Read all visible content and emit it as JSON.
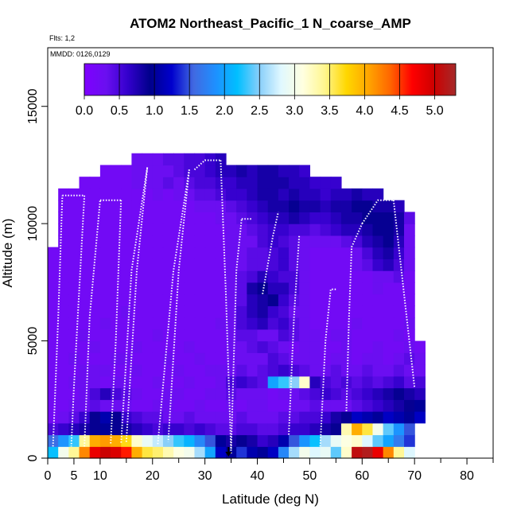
{
  "chart_data": {
    "type": "heatmap",
    "title": "ATOM2 Northeast_Pacific_1 N_coarse_AMP",
    "flights_label": "Flts: 1,2",
    "dates_label": "MMDD: 0126,0129",
    "xlabel": "Latitude (deg N)",
    "ylabel": "Altitude (m)",
    "xlim": [
      0,
      85
    ],
    "ylim": [
      0,
      17500
    ],
    "x_ticks": [
      0,
      5,
      10,
      20,
      30,
      40,
      50,
      60,
      70,
      80
    ],
    "x_minor_ticks": [
      15,
      25,
      35,
      45,
      55,
      65,
      75,
      85
    ],
    "y_ticks": [
      0,
      5000,
      10000,
      15000
    ],
    "colorbar": {
      "min": 0,
      "max": 5.3,
      "ticks": [
        0.0,
        0.5,
        1.0,
        1.5,
        2.0,
        2.5,
        3.0,
        3.5,
        4.0,
        4.5,
        5.0
      ],
      "tick_labels": [
        "0.0",
        "0.5",
        "1.0",
        "1.5",
        "2.0",
        "2.5",
        "3.0",
        "3.5",
        "4.0",
        "4.5",
        "5.0"
      ],
      "stops": [
        "#7f00ff",
        "#6a0ff0",
        "#3300cc",
        "#00008b",
        "#0000cd",
        "#4169e1",
        "#1e90ff",
        "#00bfff",
        "#87cefa",
        "#e0f8ff",
        "#ffffe0",
        "#fff68f",
        "#ffd700",
        "#ffa500",
        "#ff6600",
        "#ff0000",
        "#cd0000",
        "#a52a2a"
      ]
    },
    "latitude_bins": [
      1,
      3,
      5,
      7,
      9,
      11,
      13,
      15,
      17,
      19,
      21,
      23,
      25,
      27,
      29,
      31,
      33,
      35,
      37,
      39,
      41,
      43,
      45,
      47,
      49,
      51,
      53,
      55,
      57,
      59,
      61,
      63,
      65,
      67,
      69,
      71
    ],
    "altitude_bins": [
      250,
      750,
      1250,
      1750,
      2250,
      2750,
      3250,
      3750,
      4250,
      4750,
      5250,
      5750,
      6250,
      6750,
      7250,
      7750,
      8250,
      8750,
      9250,
      9750,
      10250,
      10750,
      11250,
      11750,
      12250,
      12750
    ],
    "series": [
      {
        "name": "0-500 m",
        "values": [
          2.2,
          3.0,
          3.4,
          4.2,
          4.8,
          5.0,
          4.9,
          4.6,
          4.0,
          3.6,
          3.5,
          3.3,
          3.1,
          3.0,
          2.6,
          2.0,
          1.2,
          1.0,
          1.4,
          1.1,
          1.0,
          1.2,
          1.8,
          2.6,
          3.0,
          2.8,
          2.9,
          2.4,
          3.2,
          5.1,
          5.2,
          4.8,
          4.2,
          3.4,
          2.8,
          null
        ]
      },
      {
        "name": "500-1000 m",
        "values": [
          1.6,
          1.9,
          2.3,
          3.4,
          4.0,
          4.1,
          4.0,
          3.7,
          3.2,
          2.9,
          2.7,
          2.5,
          2.3,
          2.1,
          1.8,
          1.5,
          1.0,
          0.8,
          0.9,
          0.8,
          0.6,
          0.7,
          1.1,
          1.5,
          1.9,
          2.2,
          2.6,
          2.9,
          3.1,
          3.2,
          2.8,
          2.4,
          2.0,
          1.7,
          1.4,
          null
        ]
      },
      {
        "name": "1000-1500 m",
        "values": [
          0.5,
          0.6,
          0.7,
          0.8,
          0.9,
          1.0,
          0.9,
          0.8,
          0.7,
          0.6,
          0.5,
          0.6,
          0.6,
          0.5,
          0.6,
          0.5,
          0.4,
          0.4,
          0.5,
          0.5,
          0.4,
          0.4,
          0.5,
          0.6,
          0.6,
          0.7,
          0.8,
          0.9,
          3.3,
          4.0,
          3.6,
          3.0,
          2.4,
          1.9,
          1.5,
          null
        ]
      },
      {
        "name": "1500-2000 m",
        "values": [
          0.2,
          0.3,
          0.4,
          0.6,
          0.9,
          1.1,
          0.9,
          0.6,
          0.5,
          0.4,
          0.4,
          0.3,
          0.3,
          0.4,
          0.3,
          0.3,
          0.3,
          0.3,
          0.4,
          0.3,
          0.3,
          0.3,
          0.4,
          0.4,
          0.5,
          0.5,
          0.6,
          0.8,
          0.9,
          1.2,
          1.1,
          1.0,
          1.2,
          1.1,
          1.0,
          1.2
        ]
      },
      {
        "name": "2000-2500 m",
        "values": [
          0.2,
          0.2,
          0.3,
          0.3,
          0.4,
          0.3,
          0.3,
          0.3,
          0.2,
          0.2,
          0.3,
          0.3,
          0.2,
          0.2,
          0.3,
          0.2,
          0.2,
          0.3,
          0.2,
          0.3,
          0.3,
          0.2,
          0.2,
          0.3,
          0.3,
          0.4,
          0.3,
          0.3,
          0.3,
          0.4,
          0.5,
          0.6,
          0.7,
          0.8,
          0.9,
          1.0
        ]
      },
      {
        "name": "2500-3000 m",
        "values": [
          0.2,
          0.2,
          0.2,
          0.3,
          0.5,
          0.7,
          0.5,
          0.4,
          0.3,
          0.2,
          0.2,
          0.3,
          0.3,
          0.2,
          0.2,
          0.3,
          0.3,
          0.4,
          0.3,
          0.3,
          0.3,
          0.2,
          0.3,
          0.3,
          0.4,
          0.5,
          0.6,
          0.5,
          0.4,
          0.5,
          0.6,
          0.7,
          0.8,
          0.9,
          0.8,
          0.7
        ]
      },
      {
        "name": "3000-3500 m",
        "values": [
          0.2,
          0.2,
          0.3,
          0.3,
          0.3,
          0.2,
          0.3,
          0.3,
          0.2,
          0.2,
          0.3,
          0.2,
          0.2,
          0.3,
          0.2,
          0.2,
          0.3,
          0.5,
          0.6,
          0.5,
          0.4,
          2.0,
          2.3,
          2.5,
          3.2,
          0.7,
          0.5,
          0.4,
          0.5,
          0.4,
          0.5,
          0.4,
          0.5,
          0.6,
          0.4,
          0.5
        ]
      },
      {
        "name": "3500-4000 m",
        "values": [
          0.2,
          0.2,
          0.2,
          0.3,
          0.3,
          0.3,
          0.2,
          0.2,
          0.3,
          0.2,
          0.2,
          0.2,
          0.3,
          0.2,
          0.2,
          0.3,
          0.3,
          0.3,
          0.4,
          0.3,
          0.4,
          0.5,
          0.6,
          0.5,
          0.4,
          0.3,
          0.3,
          0.4,
          0.3,
          0.3,
          0.4,
          0.3,
          0.3,
          0.4,
          0.3,
          0.3
        ]
      },
      {
        "name": "4000-4500 m",
        "values": [
          0.2,
          0.2,
          0.3,
          0.2,
          0.2,
          0.2,
          0.3,
          0.3,
          0.2,
          0.2,
          0.2,
          0.3,
          0.2,
          0.2,
          0.3,
          0.2,
          0.2,
          0.3,
          0.3,
          0.3,
          0.3,
          0.5,
          0.4,
          0.3,
          0.3,
          0.3,
          0.2,
          0.3,
          0.3,
          0.2,
          0.3,
          0.3,
          0.2,
          0.3,
          0.4,
          0.3
        ]
      },
      {
        "name": "4500-5000 m",
        "values": [
          0.2,
          0.2,
          0.2,
          0.2,
          0.3,
          0.2,
          0.2,
          0.2,
          0.3,
          0.2,
          0.2,
          0.2,
          0.2,
          0.3,
          0.2,
          0.2,
          0.2,
          0.3,
          0.3,
          0.4,
          0.5,
          0.4,
          0.3,
          0.2,
          0.3,
          0.3,
          0.2,
          0.2,
          0.3,
          0.2,
          0.2,
          0.3,
          0.2,
          0.2,
          0.3,
          0.2
        ]
      },
      {
        "name": "5000-5500 m",
        "values": [
          0.2,
          0.2,
          0.2,
          0.3,
          0.2,
          0.2,
          0.2,
          0.2,
          0.2,
          0.2,
          0.3,
          0.2,
          0.2,
          0.2,
          0.2,
          0.2,
          0.2,
          0.3,
          0.4,
          0.4,
          0.3,
          0.3,
          0.5,
          0.4,
          0.3,
          0.3,
          0.2,
          0.3,
          0.3,
          0.2,
          0.2,
          0.2,
          0.2,
          0.3,
          0.2,
          null
        ]
      },
      {
        "name": "5500-6000 m",
        "values": [
          0.2,
          0.2,
          0.2,
          0.2,
          0.2,
          0.3,
          0.2,
          0.2,
          0.2,
          0.2,
          0.2,
          0.2,
          0.2,
          0.2,
          0.2,
          0.2,
          0.3,
          0.3,
          0.5,
          0.6,
          0.7,
          0.5,
          0.6,
          0.4,
          0.3,
          0.2,
          0.2,
          0.2,
          0.2,
          0.3,
          0.2,
          0.2,
          0.2,
          0.2,
          0.3,
          null
        ]
      },
      {
        "name": "6000-6500 m",
        "values": [
          0.2,
          0.2,
          0.2,
          0.2,
          0.2,
          0.2,
          0.2,
          0.3,
          0.2,
          0.2,
          0.2,
          0.2,
          0.2,
          0.2,
          0.2,
          0.2,
          0.2,
          0.3,
          0.5,
          0.7,
          0.8,
          0.6,
          0.5,
          0.3,
          0.3,
          0.2,
          0.2,
          0.2,
          0.2,
          0.2,
          0.2,
          0.2,
          0.2,
          0.2,
          0.2,
          null
        ]
      },
      {
        "name": "6500-7000 m",
        "values": [
          0.2,
          0.2,
          0.2,
          0.2,
          0.2,
          0.2,
          0.2,
          0.2,
          0.2,
          0.2,
          0.2,
          0.2,
          0.2,
          0.2,
          0.2,
          0.2,
          0.2,
          0.3,
          0.4,
          0.7,
          0.8,
          0.9,
          0.6,
          0.4,
          0.3,
          0.2,
          0.2,
          0.2,
          0.2,
          0.2,
          0.2,
          0.2,
          0.2,
          0.2,
          0.2,
          null
        ]
      },
      {
        "name": "7000-7500 m",
        "values": [
          0.2,
          0.2,
          0.2,
          0.2,
          0.2,
          0.2,
          0.2,
          0.2,
          0.2,
          0.2,
          0.2,
          0.2,
          0.2,
          0.2,
          0.2,
          0.2,
          0.2,
          0.3,
          0.4,
          0.8,
          0.9,
          0.7,
          0.7,
          0.5,
          0.3,
          0.2,
          0.2,
          0.2,
          0.2,
          0.2,
          0.2,
          0.3,
          0.2,
          0.2,
          0.2,
          null
        ]
      },
      {
        "name": "7500-8000 m",
        "values": [
          0.2,
          0.2,
          0.2,
          0.2,
          0.2,
          0.2,
          0.2,
          0.2,
          0.2,
          0.2,
          0.2,
          0.2,
          0.2,
          0.2,
          0.2,
          0.2,
          0.2,
          0.3,
          0.4,
          0.5,
          0.7,
          0.6,
          0.5,
          0.5,
          0.3,
          0.2,
          0.2,
          0.2,
          0.2,
          0.2,
          0.2,
          0.3,
          0.3,
          0.4,
          0.2,
          null
        ]
      },
      {
        "name": "8000-8500 m",
        "values": [
          0.2,
          0.2,
          0.2,
          0.2,
          0.2,
          0.2,
          0.2,
          0.2,
          0.2,
          0.2,
          0.2,
          0.2,
          0.2,
          0.2,
          0.2,
          0.2,
          0.2,
          0.3,
          0.3,
          0.4,
          0.4,
          0.5,
          0.6,
          0.4,
          0.3,
          0.2,
          0.2,
          0.2,
          0.2,
          0.3,
          0.4,
          0.6,
          0.7,
          0.5,
          0.3,
          null
        ]
      },
      {
        "name": "8500-9000 m",
        "values": [
          0.2,
          0.2,
          0.2,
          0.2,
          0.2,
          0.2,
          0.2,
          0.2,
          0.2,
          0.2,
          0.2,
          0.2,
          0.2,
          0.2,
          0.2,
          0.2,
          0.2,
          0.3,
          0.3,
          0.4,
          0.4,
          0.5,
          0.6,
          0.4,
          0.3,
          0.2,
          0.2,
          0.2,
          0.2,
          0.3,
          0.5,
          0.7,
          0.8,
          0.6,
          0.3,
          null
        ]
      },
      {
        "name": "9000-9500 m",
        "values": [
          null,
          0.2,
          0.2,
          0.2,
          0.2,
          0.2,
          0.2,
          0.2,
          0.2,
          0.2,
          0.2,
          0.2,
          0.2,
          0.2,
          0.2,
          0.2,
          0.2,
          0.3,
          0.3,
          0.3,
          0.5,
          0.6,
          0.5,
          0.4,
          0.3,
          0.3,
          0.3,
          0.3,
          0.4,
          0.5,
          0.7,
          0.8,
          0.9,
          0.7,
          0.3,
          null
        ]
      },
      {
        "name": "9500-10000 m",
        "values": [
          null,
          0.2,
          0.2,
          0.2,
          0.2,
          0.2,
          0.2,
          0.2,
          0.2,
          0.2,
          0.2,
          0.2,
          0.2,
          0.2,
          0.2,
          0.2,
          0.2,
          0.3,
          0.3,
          0.4,
          0.5,
          0.6,
          0.6,
          0.5,
          0.5,
          0.4,
          0.5,
          0.6,
          0.7,
          0.7,
          0.8,
          0.9,
          0.9,
          0.8,
          0.3,
          null
        ]
      },
      {
        "name": "10000-10500 m",
        "values": [
          null,
          0.2,
          0.2,
          0.2,
          0.2,
          0.2,
          0.2,
          0.2,
          0.2,
          0.2,
          0.2,
          0.2,
          0.2,
          0.2,
          0.2,
          0.2,
          0.3,
          0.3,
          0.4,
          0.5,
          0.6,
          0.7,
          0.7,
          0.8,
          0.7,
          0.6,
          0.6,
          0.7,
          0.8,
          0.8,
          0.9,
          0.9,
          0.9,
          0.8,
          0.4,
          null
        ]
      },
      {
        "name": "10500-11000 m",
        "values": [
          null,
          0.2,
          0.2,
          0.2,
          0.2,
          0.2,
          0.2,
          0.2,
          0.2,
          0.2,
          0.2,
          0.2,
          0.2,
          0.2,
          0.3,
          0.3,
          0.3,
          0.4,
          0.5,
          0.6,
          0.7,
          0.8,
          0.8,
          0.9,
          0.8,
          0.8,
          0.7,
          0.8,
          0.8,
          0.9,
          0.9,
          0.8,
          0.8,
          0.7,
          null,
          null
        ]
      },
      {
        "name": "11000-11500 m",
        "values": [
          null,
          0.2,
          0.2,
          0.2,
          0.2,
          0.2,
          0.2,
          0.2,
          0.2,
          0.2,
          0.3,
          0.2,
          0.3,
          0.3,
          0.4,
          0.4,
          0.5,
          0.6,
          0.6,
          0.7,
          0.8,
          0.8,
          0.7,
          0.8,
          0.7,
          0.7,
          0.6,
          0.7,
          0.7,
          0.8,
          0.7,
          0.7,
          null,
          null,
          null,
          null
        ]
      },
      {
        "name": "11500-12000 m",
        "values": [
          null,
          null,
          null,
          0.2,
          0.2,
          0.2,
          0.2,
          0.2,
          0.3,
          0.3,
          0.3,
          0.4,
          0.3,
          0.4,
          0.5,
          0.5,
          0.6,
          0.6,
          0.7,
          0.7,
          0.8,
          0.8,
          0.8,
          0.7,
          0.7,
          0.6,
          0.6,
          0.6,
          null,
          null,
          null,
          null,
          null,
          null,
          null,
          null
        ]
      },
      {
        "name": "12000-12500 m",
        "values": [
          null,
          null,
          null,
          null,
          null,
          0.2,
          0.2,
          0.2,
          0.3,
          0.3,
          0.3,
          0.3,
          0.4,
          0.5,
          0.5,
          0.6,
          0.7,
          0.7,
          0.8,
          0.7,
          0.8,
          0.8,
          0.7,
          0.7,
          0.6,
          null,
          null,
          null,
          null,
          null,
          null,
          null,
          null,
          null,
          null,
          null
        ]
      },
      {
        "name": "12500-13000 m",
        "values": [
          null,
          null,
          null,
          null,
          null,
          null,
          null,
          null,
          0.3,
          0.3,
          0.3,
          0.4,
          0.4,
          0.5,
          0.5,
          0.6,
          0.7,
          null,
          null,
          null,
          null,
          null,
          null,
          null,
          null,
          null,
          null,
          null,
          null,
          null,
          null,
          null,
          null,
          null,
          null,
          null
        ]
      }
    ],
    "flight_track_note": "white dotted lines show aircraft vertical profiles"
  }
}
